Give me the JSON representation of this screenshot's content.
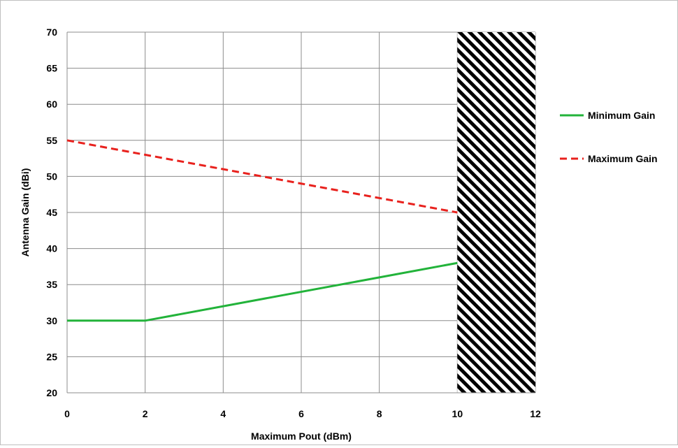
{
  "chart_data": {
    "type": "line",
    "title": "",
    "xlabel": "Maximum Pout (dBm)",
    "ylabel": "Antenna Gain (dBi)",
    "xlim": [
      0,
      12
    ],
    "ylim": [
      20,
      70
    ],
    "x_ticks": [
      "0",
      "2",
      "4",
      "6",
      "8",
      "10",
      "12"
    ],
    "y_ticks": [
      "20",
      "25",
      "30",
      "35",
      "40",
      "45",
      "50",
      "55",
      "60",
      "65",
      "70"
    ],
    "grid": true,
    "legend_position": "right",
    "hatched_region": {
      "x_from": 10,
      "x_to": 12
    },
    "series": [
      {
        "name": "Minimum Gain",
        "color": "#22b33a",
        "style": "solid",
        "x": [
          0,
          2,
          10
        ],
        "y": [
          30,
          30,
          38
        ]
      },
      {
        "name": "Maximum Gain",
        "color": "#e8211d",
        "style": "dashed",
        "x": [
          0,
          10
        ],
        "y": [
          55,
          45
        ]
      }
    ]
  }
}
